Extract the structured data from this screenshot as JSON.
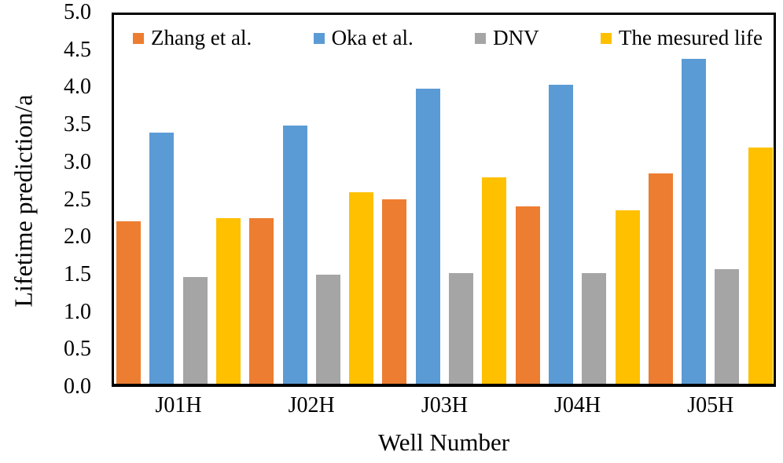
{
  "figure": {
    "background": "#ffffff",
    "axis_color": "#000000",
    "text_color": "#000000"
  },
  "chart_data": {
    "type": "bar",
    "title": "",
    "xlabel": "Well Number",
    "ylabel": "Lifetime prediction/a",
    "categories": [
      "J01H",
      "J02H",
      "J03H",
      "J04H",
      "J05H"
    ],
    "series": [
      {
        "name": "Zhang et al.",
        "color": "#ED7D31",
        "values": [
          2.2,
          2.25,
          2.5,
          2.4,
          2.85
        ]
      },
      {
        "name": "Oka et al.",
        "color": "#5B9BD5",
        "values": [
          3.4,
          3.5,
          4.0,
          4.05,
          4.4
        ]
      },
      {
        "name": "DNV",
        "color": "#A5A5A5",
        "values": [
          1.45,
          1.48,
          1.5,
          1.5,
          1.55
        ]
      },
      {
        "name": "The mesured life",
        "color": "#FFC000",
        "values": [
          2.25,
          2.6,
          2.8,
          2.35,
          3.2
        ]
      }
    ],
    "ylim": [
      0,
      5
    ],
    "ytick_step": 0.5,
    "ytick_labels": [
      "0.0",
      "0.5",
      "1.0",
      "1.5",
      "2.0",
      "2.5",
      "3.0",
      "3.5",
      "4.0",
      "4.5",
      "5.0"
    ],
    "legend_position": "top-inside",
    "grid": false
  }
}
